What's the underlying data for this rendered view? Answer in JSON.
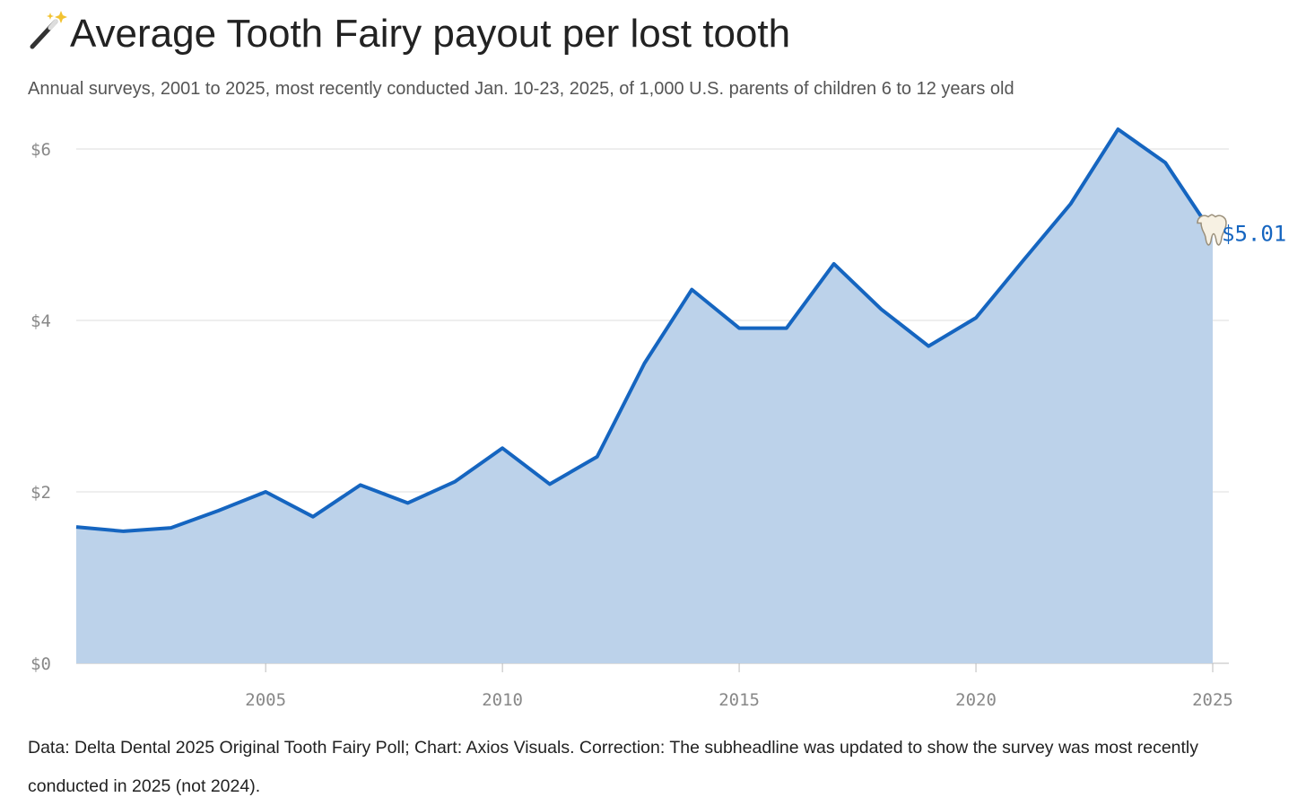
{
  "chart_data": {
    "type": "area",
    "title": "Average Tooth Fairy payout per lost tooth",
    "subtitle": "Annual surveys, 2001 to 2025, most recently conducted Jan. 10-23, 2025, of 1,000 U.S. parents of children 6 to 12 years old",
    "note": "Data: Delta Dental 2025 Original Tooth Fairy Poll; Chart: Axios Visuals. Correction: The subheadline was updated to show the survey was most recently conducted in 2025 (not 2024).",
    "x": [
      2001,
      2002,
      2003,
      2004,
      2005,
      2006,
      2007,
      2008,
      2009,
      2010,
      2011,
      2012,
      2013,
      2014,
      2015,
      2016,
      2017,
      2018,
      2019,
      2020,
      2021,
      2022,
      2023,
      2024,
      2025
    ],
    "values": [
      1.59,
      1.54,
      1.58,
      1.78,
      2.0,
      1.71,
      2.08,
      1.87,
      2.12,
      2.51,
      2.09,
      2.41,
      3.5,
      4.36,
      3.91,
      3.91,
      4.66,
      4.13,
      3.7,
      4.03,
      4.7,
      5.36,
      6.23,
      5.84,
      5.01
    ],
    "value_labels": [
      null,
      null,
      null,
      null,
      null,
      null,
      null,
      null,
      null,
      null,
      null,
      null,
      null,
      null,
      null,
      null,
      null,
      null,
      null,
      null,
      null,
      null,
      null,
      null,
      "$5.01"
    ],
    "color": "#1565c0",
    "fill_color": "#bcd2ea",
    "xlim": [
      2001,
      2025
    ],
    "xticks": [
      2005,
      2010,
      2015,
      2020,
      2025
    ],
    "ylim": [
      0,
      6
    ],
    "yticks": [
      {
        "value": 0,
        "label": "$0"
      },
      {
        "value": 2,
        "label": "$2"
      },
      {
        "value": 4,
        "label": "$4"
      },
      {
        "value": 6,
        "label": "$6"
      }
    ],
    "grid": true
  }
}
